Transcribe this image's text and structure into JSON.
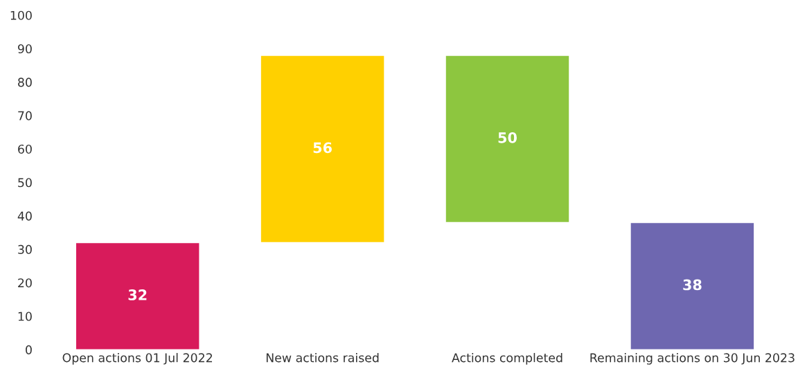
{
  "chart_data": {
    "type": "bar",
    "categories": [
      "Open actions 01 Jul 2022",
      "New actions raised",
      "Actions completed",
      "Remaining actions on 30 Jun 2023"
    ],
    "values": [
      32,
      56,
      50,
      38
    ],
    "base": [
      0,
      32,
      38,
      0
    ],
    "colors": [
      "#d81b5b",
      "#ffd000",
      "#8dc63f",
      "#6e67b0"
    ],
    "ylim": [
      0,
      100
    ],
    "yticks": [
      0,
      10,
      20,
      30,
      40,
      50,
      60,
      70,
      80,
      90,
      100
    ],
    "data_labels": true,
    "grid": false,
    "legend": false
  }
}
